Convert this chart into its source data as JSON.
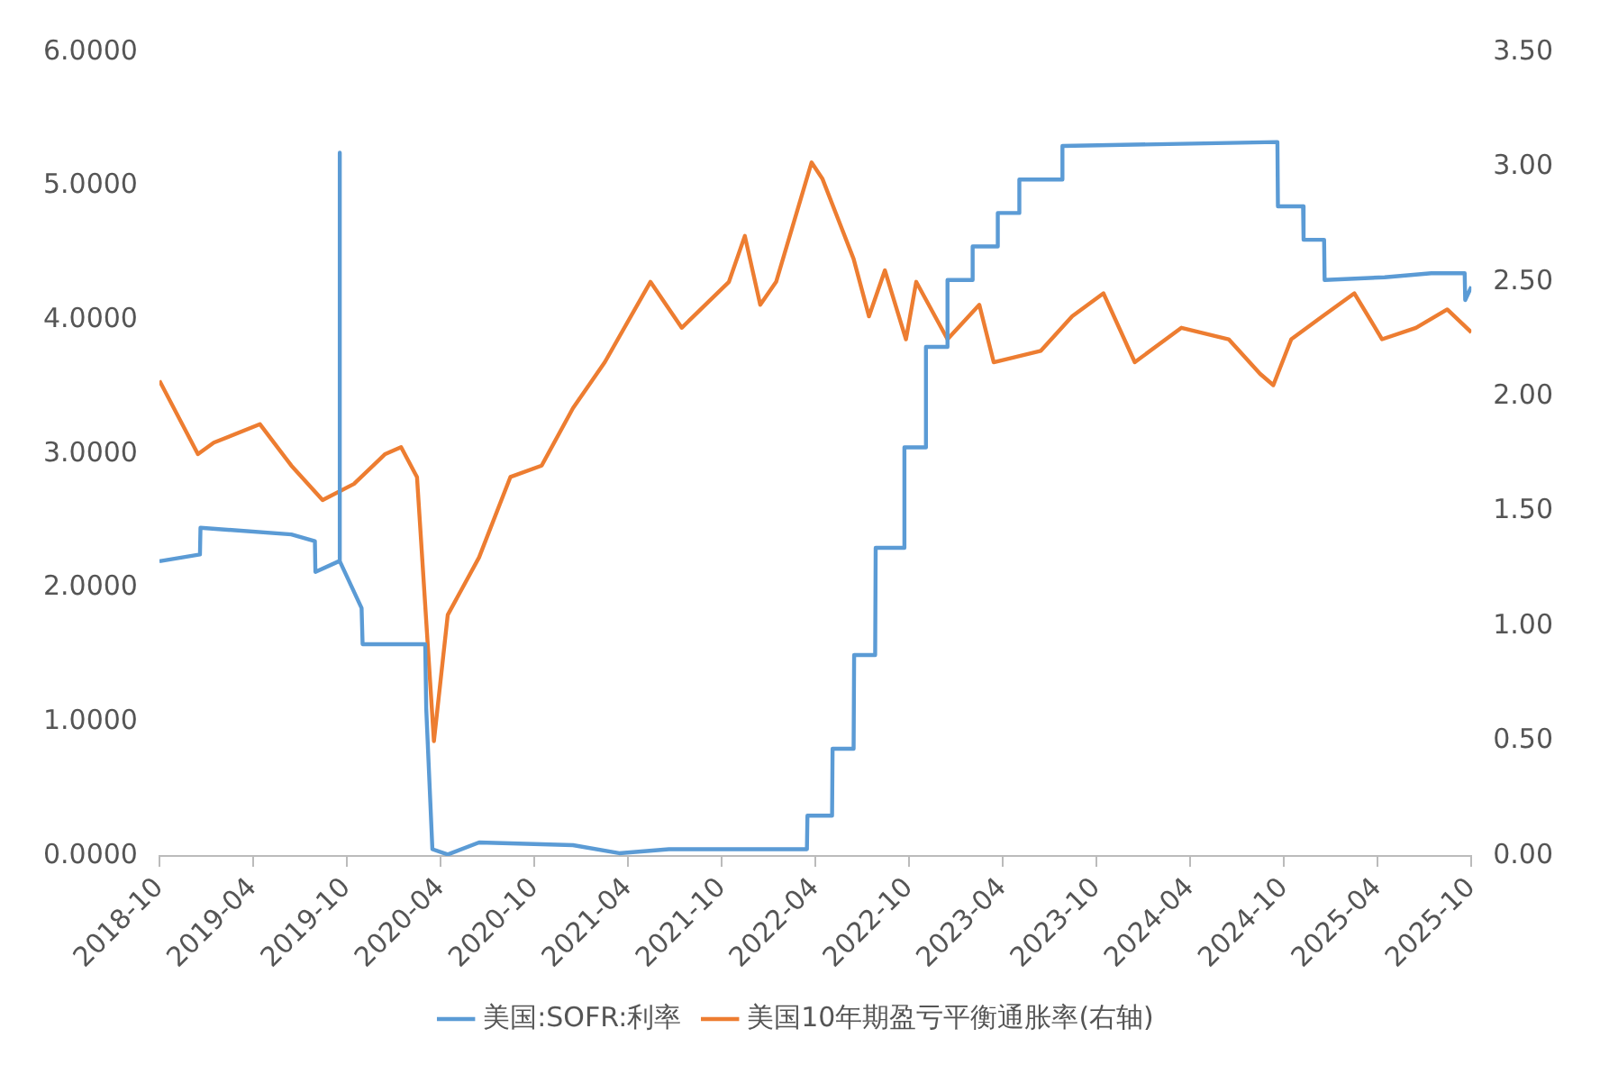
{
  "chart_data": {
    "type": "line",
    "legend": "bottom",
    "grid": false,
    "xlim": [
      "2018-10",
      "2025-10"
    ],
    "xticks": [
      "2018-10",
      "2019-04",
      "2019-10",
      "2020-04",
      "2020-10",
      "2021-04",
      "2021-10",
      "2022-04",
      "2022-10",
      "2023-04",
      "2023-10",
      "2024-04",
      "2024-10",
      "2025-04",
      "2025-10"
    ],
    "ylim": [
      0,
      6
    ],
    "yticks": [
      {
        "value": 0,
        "label": "0.0000"
      },
      {
        "value": 1,
        "label": "1.0000"
      },
      {
        "value": 2,
        "label": "2.0000"
      },
      {
        "value": 3,
        "label": "3.0000"
      },
      {
        "value": 4,
        "label": "4.0000"
      },
      {
        "value": 5,
        "label": "5.0000"
      },
      {
        "value": 6,
        "label": "6.0000"
      }
    ],
    "y2lim": [
      0,
      3.5
    ],
    "y2ticks": [
      {
        "value": 0,
        "label": "0.00"
      },
      {
        "value": 0.5,
        "label": "0.50"
      },
      {
        "value": 1,
        "label": "1.00"
      },
      {
        "value": 1.5,
        "label": "1.50"
      },
      {
        "value": 2,
        "label": "2.00"
      },
      {
        "value": 2.5,
        "label": "2.50"
      },
      {
        "value": 3,
        "label": "3.00"
      },
      {
        "value": 3.5,
        "label": "3.50"
      }
    ],
    "series": [
      {
        "name": "美国:SOFR:利率",
        "color": "#5b9bd5",
        "x": [
          "2018-10-01",
          "2018-12-19",
          "2018-12-20",
          "2019-06-15",
          "2019-07-31",
          "2019-08-01",
          "2019-09-16",
          "2019-09-17",
          "2019-09-18",
          "2019-10-30",
          "2019-11-01",
          "2020-03-02",
          "2020-03-04",
          "2020-03-16",
          "2020-04-15",
          "2020-06-15",
          "2020-12-15",
          "2021-03-15",
          "2021-06-20",
          "2022-03-16",
          "2022-03-17",
          "2022-05-04",
          "2022-05-05",
          "2022-06-15",
          "2022-06-16",
          "2022-07-27",
          "2022-07-28",
          "2022-09-21",
          "2022-09-22",
          "2022-11-02",
          "2022-11-03",
          "2022-12-14",
          "2022-12-15",
          "2023-02-01",
          "2023-02-02",
          "2023-03-22",
          "2023-03-23",
          "2023-05-03",
          "2023-05-04",
          "2023-07-26",
          "2023-07-27",
          "2024-09-18",
          "2024-09-19",
          "2024-11-07",
          "2024-11-08",
          "2024-12-18",
          "2024-12-19",
          "2025-04-15",
          "2025-07-15",
          "2025-09-18",
          "2025-09-19",
          "2025-10-01"
        ],
        "values": [
          2.2,
          2.25,
          2.45,
          2.4,
          2.35,
          2.12,
          2.2,
          5.25,
          2.2,
          1.85,
          1.58,
          1.58,
          1.1,
          0.05,
          0.01,
          0.1,
          0.08,
          0.02,
          0.05,
          0.05,
          0.3,
          0.3,
          0.8,
          0.8,
          1.5,
          1.5,
          2.3,
          2.3,
          3.05,
          3.05,
          3.8,
          3.8,
          4.3,
          4.3,
          4.55,
          4.55,
          4.8,
          4.8,
          5.05,
          5.05,
          5.3,
          5.33,
          4.85,
          4.85,
          4.6,
          4.6,
          4.3,
          4.32,
          4.35,
          4.35,
          4.15,
          4.25
        ]
      },
      {
        "name": "美国10年期盈亏平衡通胀率(右轴)",
        "color": "#ed7d31",
        "axis": "y2",
        "x": [
          "2018-10-01",
          "2018-12-15",
          "2019-01-15",
          "2019-04-15",
          "2019-06-15",
          "2019-08-15",
          "2019-10-15",
          "2019-12-15",
          "2020-01-15",
          "2020-02-15",
          "2020-03-19",
          "2020-04-15",
          "2020-06-15",
          "2020-08-15",
          "2020-10-15",
          "2020-12-15",
          "2021-02-15",
          "2021-05-15",
          "2021-07-15",
          "2021-10-15",
          "2021-11-15",
          "2021-12-15",
          "2022-01-15",
          "2022-03-25",
          "2022-04-15",
          "2022-06-15",
          "2022-07-15",
          "2022-08-15",
          "2022-09-25",
          "2022-10-15",
          "2022-12-15",
          "2023-02-15",
          "2023-03-15",
          "2023-06-15",
          "2023-08-15",
          "2023-10-15",
          "2023-12-15",
          "2024-03-15",
          "2024-06-15",
          "2024-08-15",
          "2024-09-10",
          "2024-10-15",
          "2024-12-15",
          "2025-02-15",
          "2025-04-10",
          "2025-06-15",
          "2025-08-15",
          "2025-10-01"
        ],
        "values": [
          2.07,
          1.75,
          1.8,
          1.88,
          1.7,
          1.55,
          1.62,
          1.75,
          1.78,
          1.65,
          0.5,
          1.05,
          1.3,
          1.65,
          1.7,
          1.95,
          2.15,
          2.5,
          2.3,
          2.5,
          2.7,
          2.4,
          2.5,
          3.02,
          2.95,
          2.6,
          2.35,
          2.55,
          2.25,
          2.5,
          2.25,
          2.4,
          2.15,
          2.2,
          2.35,
          2.45,
          2.15,
          2.3,
          2.25,
          2.1,
          2.05,
          2.25,
          2.35,
          2.45,
          2.25,
          2.3,
          2.38,
          2.28
        ]
      }
    ]
  }
}
